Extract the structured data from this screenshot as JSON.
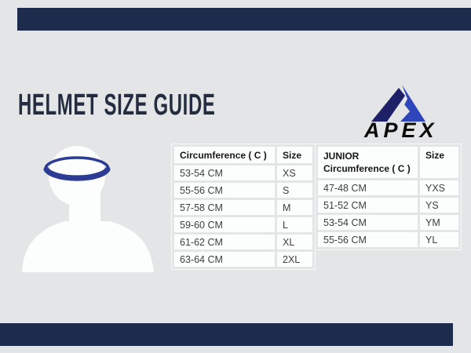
{
  "canvas": {
    "background_color": "#e4e5e7",
    "accent_bar_color": "#1d2b4c"
  },
  "header": {
    "title": "HELMET SIZE GUIDE",
    "title_color": "#242d3f"
  },
  "logo": {
    "brand": "APEX",
    "mountain_dark_color": "#1e2167",
    "mountain_blue_color": "#2e46ba",
    "wordmark_color": "#0b0b0b"
  },
  "illustration": {
    "label": "head silhouette with circumference measuring band",
    "silhouette_color": "#fcfdfd",
    "band_color": "#2c3b94"
  },
  "adult_table": {
    "headers": [
      "Circumference ( C )",
      "Size"
    ],
    "rows": [
      [
        "53-54 CM",
        "XS"
      ],
      [
        "55-56 CM",
        "S"
      ],
      [
        "57-58 CM",
        "M"
      ],
      [
        "59-60 CM",
        "L"
      ],
      [
        "61-62 CM",
        "XL"
      ],
      [
        "63-64 CM",
        "2XL"
      ]
    ]
  },
  "junior_table": {
    "header_line1": "JUNIOR",
    "header_line2": "Circumference ( C )",
    "size_header": "Size",
    "rows": [
      [
        "47-48 CM",
        "YXS"
      ],
      [
        "51-52 CM",
        "YS"
      ],
      [
        "53-54 CM",
        "YM"
      ],
      [
        "55-56 CM",
        "YL"
      ]
    ]
  },
  "chart_data": [
    {
      "type": "table",
      "title": "Helmet size guide - adult",
      "columns": [
        "Circumference ( C )",
        "Size"
      ],
      "rows": [
        [
          "53-54 CM",
          "XS"
        ],
        [
          "55-56 CM",
          "S"
        ],
        [
          "57-58 CM",
          "M"
        ],
        [
          "59-60 CM",
          "L"
        ],
        [
          "61-62 CM",
          "XL"
        ],
        [
          "63-64 CM",
          "2XL"
        ]
      ]
    },
    {
      "type": "table",
      "title": "Helmet size guide - junior",
      "columns": [
        "JUNIOR Circumference ( C )",
        "Size"
      ],
      "rows": [
        [
          "47-48 CM",
          "YXS"
        ],
        [
          "51-52 CM",
          "YS"
        ],
        [
          "53-54 CM",
          "YM"
        ],
        [
          "55-56 CM",
          "YL"
        ]
      ]
    }
  ]
}
